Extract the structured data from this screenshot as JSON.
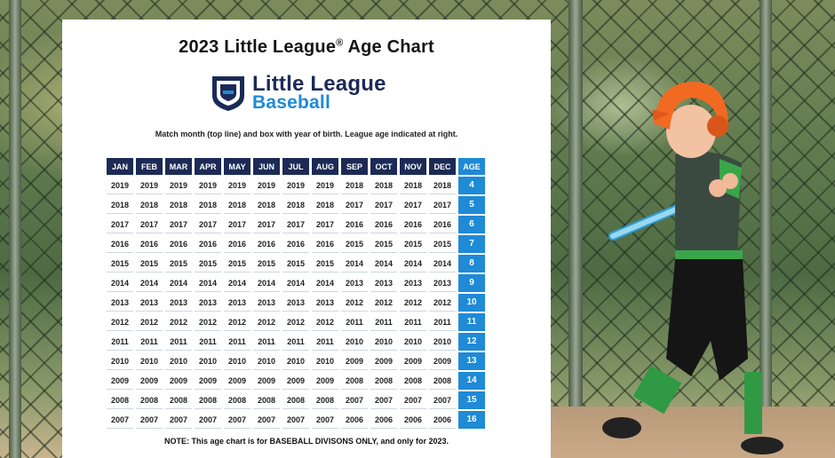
{
  "chart": {
    "title": "2023 Little League",
    "registered_mark": "®",
    "title_suffix": " Age Chart",
    "logo": {
      "line1": "Little League",
      "line2": "Baseball"
    },
    "instructions": "Match month (top line) and box with year of birth. League age indicated at right.",
    "months": [
      "JAN",
      "FEB",
      "MAR",
      "APR",
      "MAY",
      "JUN",
      "JUL",
      "AUG",
      "SEP",
      "OCT",
      "NOV",
      "DEC"
    ],
    "age_header": "AGE",
    "rows": [
      {
        "years": [
          "2019",
          "2019",
          "2019",
          "2019",
          "2019",
          "2019",
          "2019",
          "2019",
          "2018",
          "2018",
          "2018",
          "2018"
        ],
        "age": "4"
      },
      {
        "years": [
          "2018",
          "2018",
          "2018",
          "2018",
          "2018",
          "2018",
          "2018",
          "2018",
          "2017",
          "2017",
          "2017",
          "2017"
        ],
        "age": "5"
      },
      {
        "years": [
          "2017",
          "2017",
          "2017",
          "2017",
          "2017",
          "2017",
          "2017",
          "2017",
          "2016",
          "2016",
          "2016",
          "2016"
        ],
        "age": "6"
      },
      {
        "years": [
          "2016",
          "2016",
          "2016",
          "2016",
          "2016",
          "2016",
          "2016",
          "2016",
          "2015",
          "2015",
          "2015",
          "2015"
        ],
        "age": "7"
      },
      {
        "years": [
          "2015",
          "2015",
          "2015",
          "2015",
          "2015",
          "2015",
          "2015",
          "2015",
          "2014",
          "2014",
          "2014",
          "2014"
        ],
        "age": "8"
      },
      {
        "years": [
          "2014",
          "2014",
          "2014",
          "2014",
          "2014",
          "2014",
          "2014",
          "2014",
          "2013",
          "2013",
          "2013",
          "2013"
        ],
        "age": "9"
      },
      {
        "years": [
          "2013",
          "2013",
          "2013",
          "2013",
          "2013",
          "2013",
          "2013",
          "2013",
          "2012",
          "2012",
          "2012",
          "2012"
        ],
        "age": "10"
      },
      {
        "years": [
          "2012",
          "2012",
          "2012",
          "2012",
          "2012",
          "2012",
          "2012",
          "2012",
          "2011",
          "2011",
          "2011",
          "2011"
        ],
        "age": "11"
      },
      {
        "years": [
          "2011",
          "2011",
          "2011",
          "2011",
          "2011",
          "2011",
          "2011",
          "2011",
          "2010",
          "2010",
          "2010",
          "2010"
        ],
        "age": "12"
      },
      {
        "years": [
          "2010",
          "2010",
          "2010",
          "2010",
          "2010",
          "2010",
          "2010",
          "2010",
          "2009",
          "2009",
          "2009",
          "2009"
        ],
        "age": "13"
      },
      {
        "years": [
          "2009",
          "2009",
          "2009",
          "2009",
          "2009",
          "2009",
          "2009",
          "2009",
          "2008",
          "2008",
          "2008",
          "2008"
        ],
        "age": "14"
      },
      {
        "years": [
          "2008",
          "2008",
          "2008",
          "2008",
          "2008",
          "2008",
          "2008",
          "2008",
          "2007",
          "2007",
          "2007",
          "2007"
        ],
        "age": "15"
      },
      {
        "years": [
          "2007",
          "2007",
          "2007",
          "2007",
          "2007",
          "2007",
          "2007",
          "2007",
          "2006",
          "2006",
          "2006",
          "2006"
        ],
        "age": "16"
      }
    ],
    "note": "NOTE: This age chart is for BASEBALL DIVISONS ONLY, and only for 2023."
  },
  "colors": {
    "navy": "#1c2a55",
    "accent_blue": "#1f8ad6",
    "helmet_orange": "#f26a21",
    "jersey_green": "#3aa64a"
  },
  "photo": {
    "subject": "youth-baseball-batter",
    "icons": [
      "little-league-badge-icon",
      "batting-helmet-icon",
      "baseball-bat-icon"
    ]
  }
}
